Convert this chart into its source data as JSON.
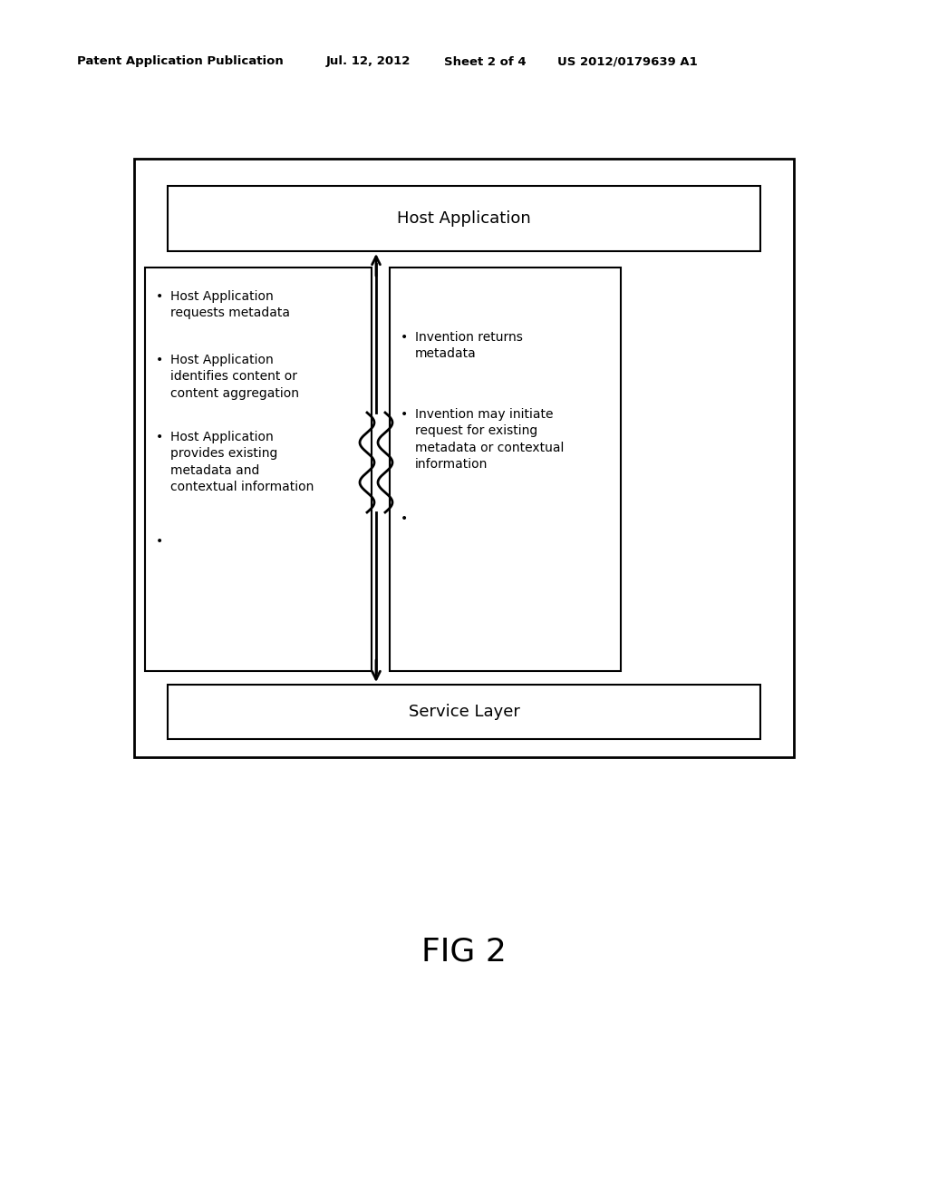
{
  "background_color": "#ffffff",
  "header_text": "Patent Application Publication",
  "header_date": "Jul. 12, 2012",
  "header_sheet": "Sheet 2 of 4",
  "header_patent": "US 2012/0179639 A1",
  "fig_label": "FIG 2",
  "host_app_label": "Host Application",
  "service_layer_label": "Service Layer",
  "left_box_bullets": [
    "Host Application\nrequests metadata",
    "Host Application\nidentifies content or\ncontent aggregation",
    "Host Application\nprovides existing\nmetadata and\ncontextual information",
    ""
  ],
  "right_box_bullets": [
    "Invention returns\nmetadata",
    "Invention may initiate\nrequest for existing\nmetadata or contextual\ninformation",
    ""
  ],
  "font_size_header": 9.5,
  "font_size_labels": 13,
  "font_size_bullets": 10.0,
  "font_size_fig": 26
}
